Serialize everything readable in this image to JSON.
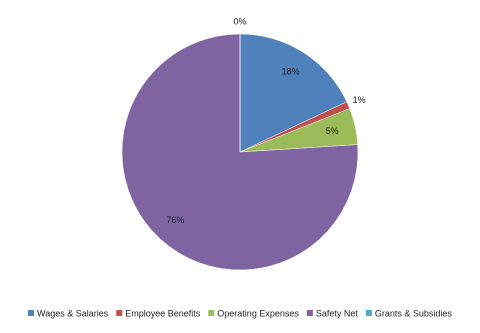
{
  "chart_data": {
    "type": "pie",
    "categories": [
      "Wages & Salaries",
      "Employee Benefits",
      "Operating Expenses",
      "Safety Net",
      "Grants & Subsidies"
    ],
    "values": [
      18,
      1,
      5,
      76,
      0
    ],
    "value_labels": [
      "18%",
      "1%",
      "5%",
      "76%",
      "0%"
    ],
    "colors": [
      "#4f81bd",
      "#c0504d",
      "#9bbb59",
      "#8064a2",
      "#4bacc6"
    ],
    "legend": "bottom"
  }
}
